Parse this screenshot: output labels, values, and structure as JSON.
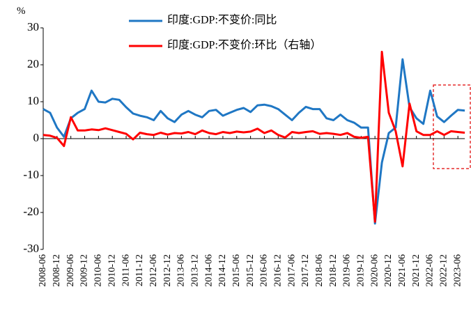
{
  "chart_data": {
    "type": "line",
    "y_label": "%",
    "categories": [
      "2008-06",
      null,
      "2008-12",
      null,
      "2009-06",
      null,
      "2009-12",
      null,
      "2010-06",
      null,
      "2010-12",
      null,
      "2011-06",
      null,
      "2011-12",
      null,
      "2012-06",
      null,
      "2012-12",
      null,
      "2013-06",
      null,
      "2013-12",
      null,
      "2014-06",
      null,
      "2014-12",
      null,
      "2015-06",
      null,
      "2015-12",
      null,
      "2016-06",
      null,
      "2016-12",
      null,
      "2017-06",
      null,
      "2017-12",
      null,
      "2018-06",
      null,
      "2018-12",
      null,
      "2019-06",
      null,
      "2019-12",
      null,
      "2020-06",
      null,
      "2020-12",
      null,
      "2021-06",
      null,
      "2021-12",
      null,
      "2022-06",
      null,
      "2022-12",
      null,
      "2023-06",
      null
    ],
    "series": [
      {
        "name": "印度:GDP:不变价:同比",
        "color": "#1f77c4",
        "values": [
          8.0,
          7.0,
          3.0,
          0.5,
          5.5,
          7.0,
          8.0,
          13.0,
          10.0,
          9.8,
          10.8,
          10.5,
          8.5,
          6.8,
          6.2,
          5.8,
          5.0,
          7.5,
          5.5,
          4.5,
          6.5,
          7.5,
          6.5,
          5.8,
          7.5,
          7.8,
          6.2,
          7.0,
          7.8,
          8.3,
          7.2,
          9.0,
          9.2,
          8.8,
          8.0,
          6.5,
          5.0,
          7.0,
          8.6,
          8.0,
          8.0,
          5.5,
          5.0,
          6.5,
          5.0,
          4.3,
          3.0,
          3.0,
          -23.0,
          -6.5,
          1.5,
          3.0,
          21.5,
          8.5,
          5.5,
          4.0,
          13.0,
          6.0,
          4.5,
          6.2,
          7.8,
          7.6
        ]
      },
      {
        "name": "印度:GDP:不变价:环比（右轴）",
        "color": "#ff0000",
        "values": [
          1.0,
          0.8,
          0.2,
          -2.0,
          5.8,
          2.2,
          2.2,
          2.5,
          2.3,
          2.8,
          2.3,
          1.8,
          1.3,
          -0.2,
          1.6,
          1.2,
          1.0,
          1.6,
          1.1,
          1.5,
          1.4,
          1.8,
          1.2,
          2.2,
          1.5,
          1.2,
          1.8,
          1.5,
          1.9,
          1.7,
          1.9,
          2.7,
          1.5,
          2.2,
          1.0,
          0.3,
          1.8,
          1.5,
          1.8,
          2.0,
          1.3,
          1.5,
          1.3,
          1.0,
          1.5,
          0.5,
          0.2,
          0.5,
          -22.5,
          23.5,
          7.0,
          2.0,
          -7.5,
          9.5,
          2.0,
          1.0,
          1.0,
          2.0,
          1.0,
          2.0,
          1.8,
          1.6
        ]
      }
    ],
    "ylim": [
      -30,
      30
    ],
    "yticks": [
      30,
      20,
      10,
      0,
      -10,
      -20,
      -30
    ],
    "grid": false,
    "legend": "top"
  }
}
